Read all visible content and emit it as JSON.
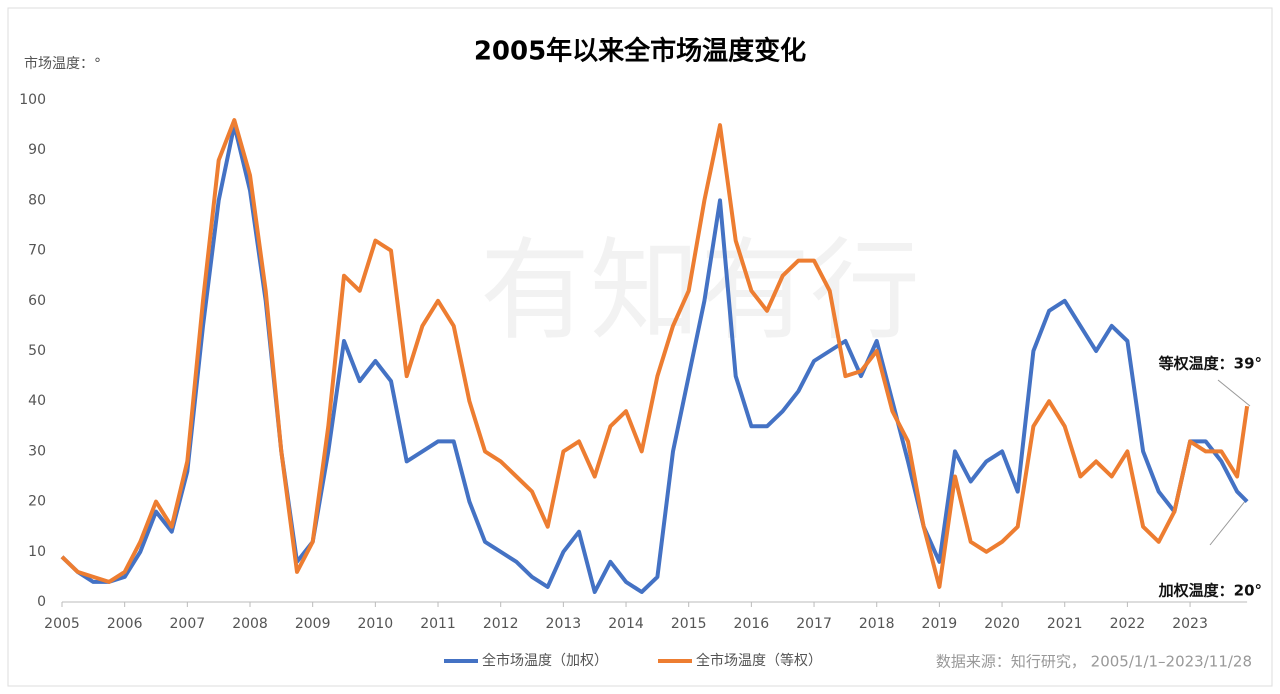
{
  "chart_data": {
    "type": "line",
    "title": "2005年以来全市场温度变化",
    "y_label": "市场温度：°",
    "watermark": "有知有行",
    "source": "数据来源：知行研究， 2005/1/1–2023/11/28",
    "annotations": [
      "等权温度：39°",
      "加权温度：20°"
    ],
    "xlim": [
      2005,
      2023.91
    ],
    "xticks": [
      2005,
      2006,
      2007,
      2008,
      2009,
      2010,
      2011,
      2012,
      2013,
      2014,
      2015,
      2016,
      2017,
      2018,
      2019,
      2020,
      2021,
      2022,
      2023
    ],
    "ylim": [
      0,
      100
    ],
    "yticks": [
      0,
      10,
      20,
      30,
      40,
      50,
      60,
      70,
      80,
      90,
      100
    ],
    "legend": "bottom",
    "x": [
      2005,
      2005.25,
      2005.5,
      2005.75,
      2006,
      2006.25,
      2006.5,
      2006.75,
      2007,
      2007.25,
      2007.5,
      2007.75,
      2008,
      2008.25,
      2008.5,
      2008.75,
      2009,
      2009.25,
      2009.5,
      2009.75,
      2010,
      2010.25,
      2010.5,
      2010.75,
      2011,
      2011.25,
      2011.5,
      2011.75,
      2012,
      2012.25,
      2012.5,
      2012.75,
      2013,
      2013.25,
      2013.5,
      2013.75,
      2014,
      2014.25,
      2014.5,
      2014.75,
      2015,
      2015.25,
      2015.5,
      2015.75,
      2016,
      2016.25,
      2016.5,
      2016.75,
      2017,
      2017.25,
      2017.5,
      2017.75,
      2018,
      2018.25,
      2018.5,
      2018.75,
      2019,
      2019.25,
      2019.5,
      2019.75,
      2020,
      2020.25,
      2020.5,
      2020.75,
      2021,
      2021.25,
      2021.5,
      2021.75,
      2022,
      2022.25,
      2022.5,
      2022.75,
      2023,
      2023.25,
      2023.5,
      2023.75,
      2023.91
    ],
    "series": [
      {
        "name": "全市场温度（加权）",
        "color": "#4472c4",
        "values": [
          9,
          6,
          4,
          4,
          5,
          10,
          18,
          14,
          26,
          55,
          80,
          95,
          82,
          60,
          30,
          8,
          12,
          30,
          52,
          44,
          48,
          44,
          28,
          30,
          32,
          32,
          20,
          12,
          10,
          8,
          5,
          3,
          10,
          14,
          2,
          8,
          4,
          2,
          5,
          30,
          45,
          60,
          80,
          45,
          35,
          35,
          38,
          42,
          48,
          50,
          52,
          45,
          52,
          40,
          28,
          15,
          8,
          30,
          24,
          28,
          30,
          22,
          50,
          58,
          60,
          55,
          50,
          55,
          52,
          30,
          22,
          18,
          32,
          32,
          28,
          22,
          20
        ]
      },
      {
        "name": "全市场温度（等权）",
        "color": "#ed7d31",
        "values": [
          9,
          6,
          5,
          4,
          6,
          12,
          20,
          15,
          28,
          60,
          88,
          96,
          85,
          62,
          30,
          6,
          12,
          35,
          65,
          62,
          72,
          70,
          45,
          55,
          60,
          55,
          40,
          30,
          28,
          25,
          22,
          15,
          30,
          32,
          25,
          35,
          38,
          30,
          45,
          55,
          62,
          80,
          95,
          72,
          62,
          58,
          65,
          68,
          68,
          62,
          45,
          46,
          50,
          38,
          32,
          15,
          3,
          25,
          12,
          10,
          12,
          15,
          35,
          40,
          35,
          25,
          28,
          25,
          30,
          15,
          12,
          18,
          32,
          30,
          30,
          25,
          39
        ]
      }
    ]
  }
}
